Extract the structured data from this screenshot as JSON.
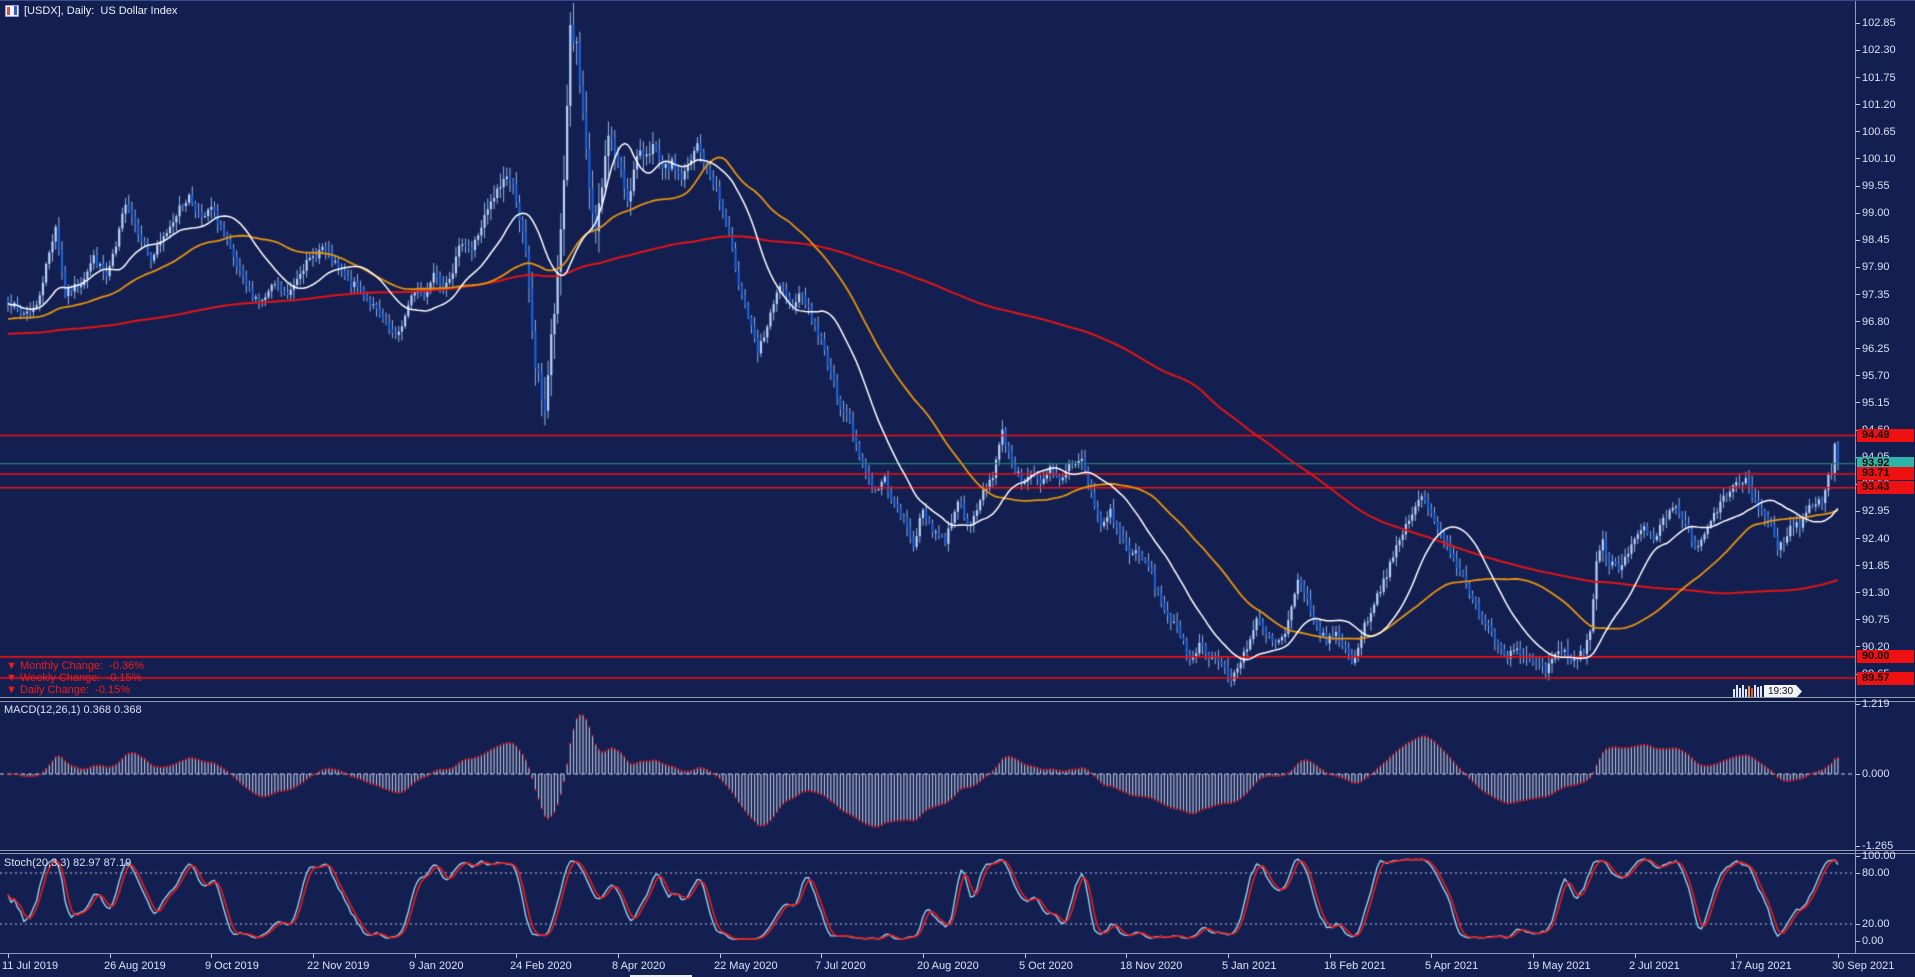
{
  "window": {
    "title": "[USDX], Daily:  US Dollar Index",
    "symbol": "USDX",
    "timeframe": "Daily",
    "description": "US Dollar Index",
    "time_tag": "19:30"
  },
  "colors": {
    "background": "#131f51",
    "axis_text": "#dbe1f2",
    "separator": "#8e99bb",
    "candle_up": "#b9d3f8",
    "candle_down": "#1a5fd6",
    "candle_wick": "#8fb2e8",
    "ma_fast": "#ffffff",
    "ma_medium": "#e8940c",
    "ma_slow": "#e21515",
    "hline_red": "#ee1111",
    "hline_teal": "#1e7f76",
    "tag_red": "#ee1111",
    "tag_teal": "#2cb5a8",
    "macd_histogram": "#b7c0d6",
    "macd_signal": "#e82222",
    "stoch_k": "#93d2f2",
    "stoch_d": "#e31c1c",
    "change_text": "#f21b1b"
  },
  "price_axis": {
    "ticks": [
      102.85,
      102.3,
      101.75,
      101.2,
      100.65,
      100.1,
      99.55,
      99.0,
      98.45,
      97.9,
      97.35,
      96.8,
      96.25,
      95.7,
      95.15,
      94.6,
      94.05,
      93.5,
      92.95,
      92.4,
      91.85,
      91.3,
      90.75,
      90.2,
      89.65
    ]
  },
  "price_tags": [
    {
      "label": "94.49",
      "price": 94.49,
      "bg": "#ee1111"
    },
    {
      "label": "93.92",
      "price": 93.92,
      "bg": "#2cb5a8"
    },
    {
      "label": "93.71",
      "price": 93.71,
      "bg": "#ee1111"
    },
    {
      "label": "93.43",
      "price": 93.43,
      "bg": "#ee1111"
    },
    {
      "label": "90.00",
      "price": 90.0,
      "bg": "#ee1111"
    },
    {
      "label": "89.57",
      "price": 89.57,
      "bg": "#ee1111"
    }
  ],
  "change_labels": [
    {
      "icon": "▼",
      "label": "Monthly Change:",
      "value": "-0.36%"
    },
    {
      "icon": "▼",
      "label": "Weekly Change:",
      "value": "-0.15%"
    },
    {
      "icon": "▼",
      "label": "Daily Change:",
      "value": "-0.15%"
    }
  ],
  "macd_pane": {
    "label": "MACD(12,26,1) 0.368 0.368",
    "ticks": [
      {
        "label": "1.219",
        "value": 1.219
      },
      {
        "label": "0.000",
        "value": 0.0
      },
      {
        "label": "-1.265",
        "value": -1.265
      }
    ]
  },
  "stoch_pane": {
    "label": "Stoch(20,3,3) 82.97 87.19",
    "ticks": [
      {
        "label": "100.00",
        "value": 100
      },
      {
        "label": "80.00",
        "value": 80
      },
      {
        "label": "20.00",
        "value": 20
      },
      {
        "label": "0.00",
        "value": 0
      }
    ],
    "levels": [
      80,
      20
    ]
  },
  "date_axis": {
    "labels": [
      "11 Jul 2019",
      "26 Aug 2019",
      "9 Oct 2019",
      "22 Nov 2019",
      "9 Jan 2020",
      "24 Feb 2020",
      "8 Apr 2020",
      "22 May 2020",
      "7 Jul 2020",
      "20 Aug 2020",
      "5 Oct 2020",
      "18 Nov 2020",
      "5 Jan 2021",
      "18 Feb 2021",
      "5 Apr 2021",
      "19 May 2021",
      "2 Jul 2021",
      "17 Aug 2021",
      "30 Sep 2021"
    ]
  },
  "chart_data": {
    "type": "candlestick",
    "symbol": "USDX",
    "timeframe": "Daily",
    "bars": 577,
    "visible_price_range": [
      89.2,
      103.1
    ],
    "anchors": [
      [
        0,
        97.25
      ],
      [
        4,
        96.95
      ],
      [
        9,
        97.1
      ],
      [
        15,
        98.75
      ],
      [
        18,
        97.35
      ],
      [
        23,
        97.6
      ],
      [
        27,
        98.1
      ],
      [
        31,
        97.7
      ],
      [
        34,
        98.3
      ],
      [
        37,
        99.25
      ],
      [
        41,
        98.65
      ],
      [
        45,
        98.05
      ],
      [
        49,
        98.5
      ],
      [
        53,
        99.0
      ],
      [
        57,
        99.35
      ],
      [
        61,
        98.85
      ],
      [
        64,
        99.1
      ],
      [
        68,
        98.55
      ],
      [
        72,
        97.9
      ],
      [
        76,
        97.4
      ],
      [
        80,
        97.2
      ],
      [
        84,
        97.55
      ],
      [
        88,
        97.3
      ],
      [
        92,
        97.85
      ],
      [
        96,
        98.1
      ],
      [
        99,
        98.3
      ],
      [
        103,
        97.95
      ],
      [
        107,
        97.6
      ],
      [
        111,
        97.45
      ],
      [
        115,
        97.1
      ],
      [
        119,
        96.7
      ],
      [
        122,
        96.45
      ],
      [
        125,
        96.9
      ],
      [
        128,
        97.45
      ],
      [
        131,
        97.3
      ],
      [
        134,
        97.8
      ],
      [
        137,
        97.55
      ],
      [
        140,
        97.85
      ],
      [
        143,
        98.45
      ],
      [
        146,
        98.25
      ],
      [
        150,
        98.9
      ],
      [
        153,
        99.3
      ],
      [
        157,
        99.8
      ],
      [
        160,
        99.35
      ],
      [
        163,
        98.1
      ],
      [
        166,
        95.9
      ],
      [
        169,
        95.05
      ],
      [
        171,
        96.4
      ],
      [
        173,
        97.6
      ],
      [
        175,
        99.7
      ],
      [
        177,
        102.8
      ],
      [
        179,
        102.3
      ],
      [
        181,
        100.8
      ],
      [
        183,
        99.5
      ],
      [
        185,
        98.55
      ],
      [
        187,
        99.5
      ],
      [
        189,
        100.7
      ],
      [
        192,
        100.0
      ],
      [
        195,
        99.3
      ],
      [
        198,
        100.1
      ],
      [
        203,
        100.35
      ],
      [
        206,
        99.85
      ],
      [
        209,
        100.0
      ],
      [
        212,
        99.7
      ],
      [
        215,
        100.05
      ],
      [
        217,
        100.4
      ],
      [
        220,
        99.85
      ],
      [
        223,
        99.5
      ],
      [
        227,
        98.5
      ],
      [
        230,
        97.6
      ],
      [
        233,
        96.9
      ],
      [
        236,
        96.15
      ],
      [
        239,
        96.7
      ],
      [
        243,
        97.55
      ],
      [
        246,
        97.1
      ],
      [
        250,
        97.4
      ],
      [
        253,
        96.85
      ],
      [
        256,
        96.4
      ],
      [
        259,
        95.75
      ],
      [
        262,
        95.1
      ],
      [
        265,
        94.75
      ],
      [
        269,
        93.9
      ],
      [
        273,
        93.35
      ],
      [
        276,
        93.6
      ],
      [
        279,
        93.05
      ],
      [
        282,
        92.75
      ],
      [
        285,
        92.3
      ],
      [
        288,
        92.95
      ],
      [
        291,
        92.6
      ],
      [
        295,
        92.35
      ],
      [
        299,
        93.2
      ],
      [
        303,
        92.6
      ],
      [
        307,
        93.35
      ],
      [
        310,
        93.7
      ],
      [
        313,
        94.55
      ],
      [
        316,
        93.95
      ],
      [
        319,
        93.55
      ],
      [
        322,
        93.75
      ],
      [
        325,
        93.45
      ],
      [
        328,
        93.8
      ],
      [
        331,
        93.55
      ],
      [
        334,
        93.9
      ],
      [
        338,
        94.0
      ],
      [
        341,
        93.3
      ],
      [
        344,
        92.65
      ],
      [
        347,
        92.95
      ],
      [
        350,
        92.45
      ],
      [
        353,
        92.15
      ],
      [
        356,
        92.05
      ],
      [
        359,
        91.85
      ],
      [
        362,
        91.25
      ],
      [
        365,
        90.85
      ],
      [
        368,
        90.55
      ],
      [
        372,
        89.95
      ],
      [
        375,
        90.25
      ],
      [
        378,
        90.05
      ],
      [
        381,
        89.95
      ],
      [
        385,
        89.5
      ],
      [
        388,
        89.95
      ],
      [
        391,
        90.35
      ],
      [
        393,
        90.75
      ],
      [
        396,
        90.45
      ],
      [
        399,
        90.25
      ],
      [
        402,
        90.45
      ],
      [
        406,
        91.5
      ],
      [
        409,
        91.15
      ],
      [
        412,
        90.55
      ],
      [
        415,
        90.35
      ],
      [
        418,
        90.45
      ],
      [
        421,
        90.2
      ],
      [
        423,
        89.85
      ],
      [
        426,
        90.45
      ],
      [
        429,
        90.95
      ],
      [
        432,
        91.4
      ],
      [
        435,
        91.85
      ],
      [
        438,
        92.35
      ],
      [
        441,
        92.8
      ],
      [
        445,
        93.25
      ],
      [
        448,
        92.9
      ],
      [
        451,
        92.55
      ],
      [
        454,
        92.15
      ],
      [
        457,
        91.75
      ],
      [
        460,
        91.25
      ],
      [
        463,
        90.9
      ],
      [
        466,
        90.65
      ],
      [
        469,
        90.25
      ],
      [
        472,
        90.05
      ],
      [
        475,
        90.2
      ],
      [
        478,
        89.95
      ],
      [
        481,
        89.85
      ],
      [
        484,
        89.7
      ],
      [
        487,
        90.0
      ],
      [
        490,
        90.1
      ],
      [
        493,
        89.9
      ],
      [
        496,
        90.15
      ],
      [
        498,
        90.5
      ],
      [
        500,
        91.95
      ],
      [
        502,
        92.3
      ],
      [
        504,
        91.95
      ],
      [
        507,
        91.85
      ],
      [
        510,
        92.15
      ],
      [
        512,
        92.35
      ],
      [
        515,
        92.6
      ],
      [
        518,
        92.3
      ],
      [
        521,
        92.75
      ],
      [
        525,
        93.05
      ],
      [
        528,
        92.7
      ],
      [
        530,
        92.3
      ],
      [
        532,
        92.2
      ],
      [
        535,
        92.6
      ],
      [
        538,
        93.0
      ],
      [
        541,
        93.3
      ],
      [
        544,
        93.5
      ],
      [
        547,
        93.55
      ],
      [
        550,
        93.15
      ],
      [
        553,
        92.85
      ],
      [
        555,
        92.7
      ],
      [
        557,
        92.15
      ],
      [
        560,
        92.5
      ],
      [
        562,
        92.7
      ],
      [
        564,
        92.65
      ],
      [
        566,
        92.95
      ],
      [
        568,
        93.1
      ],
      [
        570,
        93.2
      ],
      [
        571,
        93.1
      ],
      [
        572,
        93.45
      ],
      [
        574,
        93.8
      ],
      [
        575,
        94.3
      ],
      [
        576,
        93.92
      ]
    ],
    "moving_averages": [
      {
        "name": "MA fast",
        "period": 20,
        "color": "#ffffff"
      },
      {
        "name": "MA medium",
        "period": 50,
        "color": "#e8940c"
      },
      {
        "name": "MA slow",
        "period": 200,
        "color": "#e21515"
      }
    ],
    "horizontal_lines": [
      {
        "price": 94.49,
        "color": "#ee1111"
      },
      {
        "price": 93.92,
        "color": "#1e7f76"
      },
      {
        "price": 93.71,
        "color": "#ee1111"
      },
      {
        "price": 93.43,
        "color": "#ee1111"
      },
      {
        "price": 90.0,
        "color": "#ee1111"
      },
      {
        "price": 89.57,
        "color": "#ee1111"
      }
    ],
    "indicators": [
      {
        "name": "MACD",
        "params": [
          12,
          26,
          1
        ],
        "current": [
          0.368,
          0.368
        ],
        "range": [
          -1.265,
          1.219
        ]
      },
      {
        "name": "Stochastic",
        "params": [
          20,
          3,
          3
        ],
        "current": [
          82.97,
          87.19
        ],
        "levels": [
          80,
          20
        ],
        "range": [
          0,
          100
        ]
      }
    ]
  }
}
